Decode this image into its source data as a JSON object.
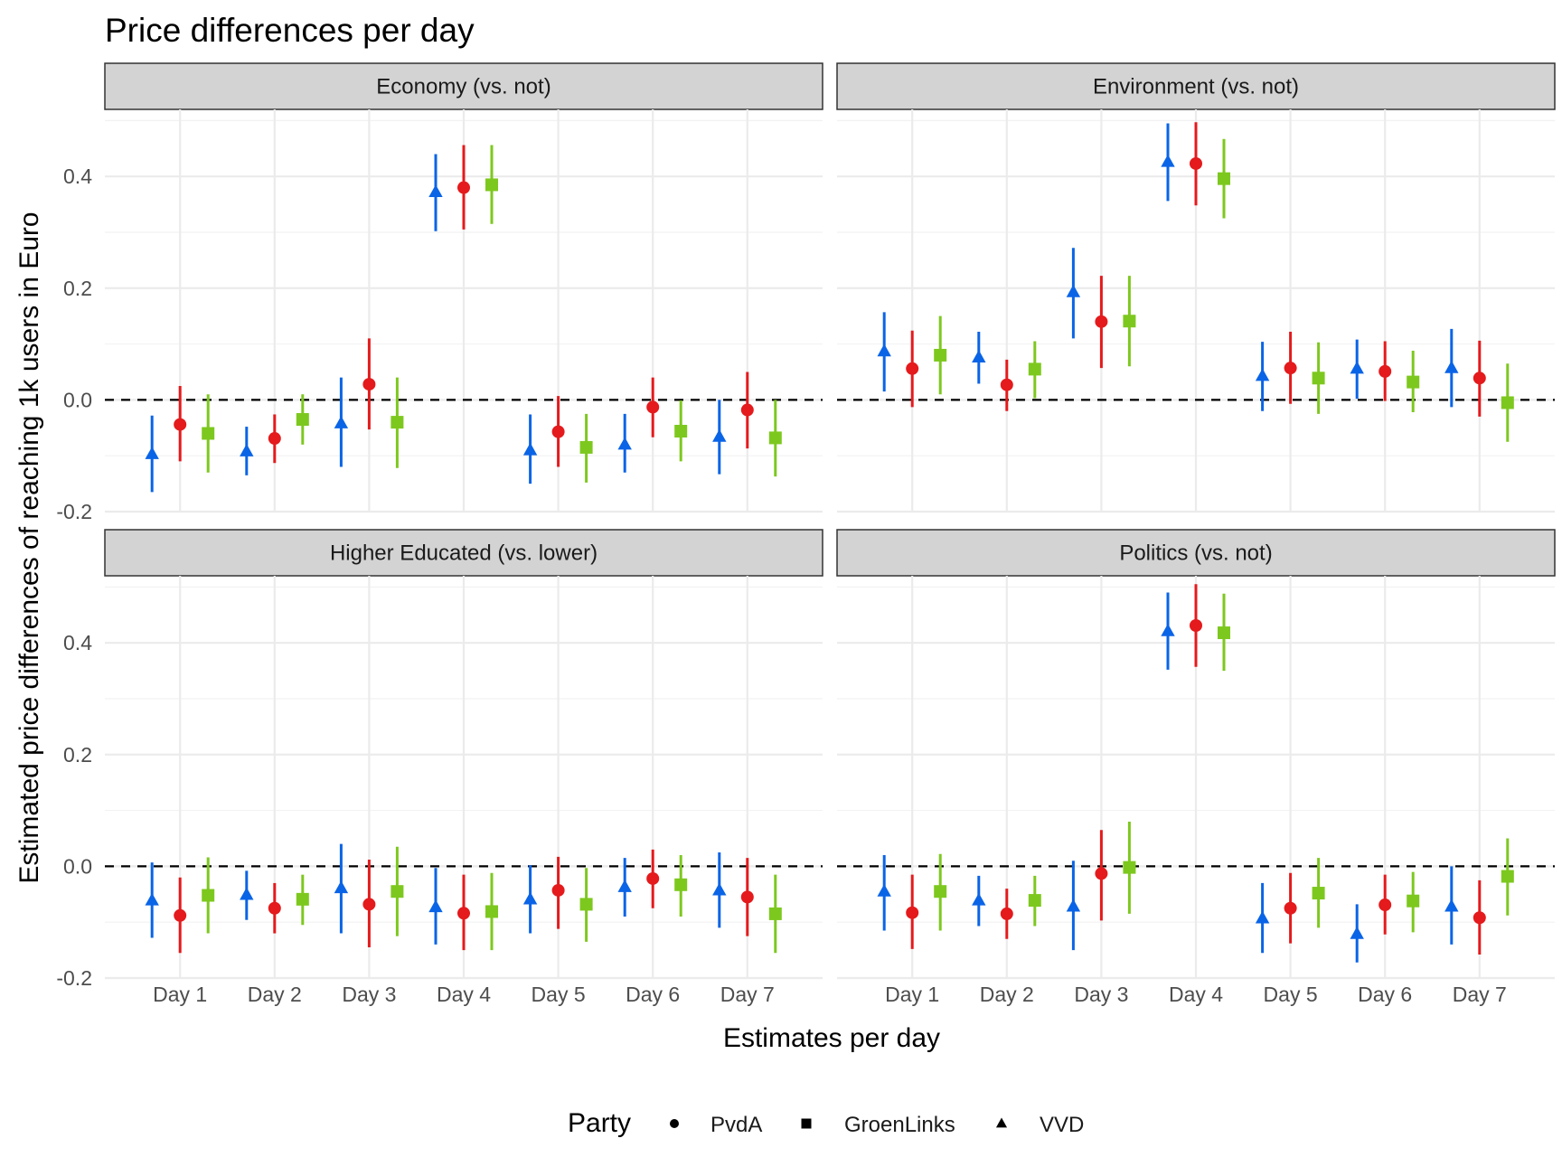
{
  "chart_data": {
    "type": "pointrange",
    "title": "Price differences per day",
    "xlabel": "Estimates per day",
    "ylabel": "Estimated price differences of reaching 1k users in Euro",
    "categories": [
      "Day 1",
      "Day 2",
      "Day 3",
      "Day 4",
      "Day 5",
      "Day 6",
      "Day 7"
    ],
    "ylim": [
      -0.2,
      0.52
    ],
    "yticks": [
      -0.2,
      0.0,
      0.2,
      0.4
    ],
    "ytick_labels": [
      "-0.2",
      "0.0",
      "0.2",
      "0.4"
    ],
    "reference_line": 0,
    "grid": true,
    "legend": {
      "title": "Party",
      "position": "bottom",
      "entries": [
        {
          "name": "PvdA",
          "shape": "circle",
          "color": "#E41A1C"
        },
        {
          "name": "GroenLinks",
          "shape": "square",
          "color": "#7DC81E"
        },
        {
          "name": "VVD",
          "shape": "triangle",
          "color": "#0A64E6"
        }
      ]
    },
    "series_order": [
      "VVD",
      "PvdA",
      "GroenLinks"
    ],
    "series_colors": {
      "VVD": "#0A64E6",
      "PvdA": "#E41A1C",
      "GroenLinks": "#7DC81E"
    },
    "series_shapes": {
      "VVD": "triangle",
      "PvdA": "circle",
      "GroenLinks": "square"
    },
    "panels": [
      {
        "title": "Economy (vs. not)",
        "series": [
          {
            "name": "VVD",
            "estimate": [
              -0.097,
              -0.092,
              -0.042,
              0.372,
              -0.09,
              -0.08,
              -0.066
            ],
            "lower": [
              -0.165,
              -0.135,
              -0.12,
              0.302,
              -0.15,
              -0.13,
              -0.133
            ],
            "upper": [
              -0.028,
              -0.048,
              0.04,
              0.44,
              -0.026,
              -0.025,
              0.0
            ]
          },
          {
            "name": "PvdA",
            "estimate": [
              -0.044,
              -0.069,
              0.028,
              0.38,
              -0.057,
              -0.013,
              -0.018
            ],
            "lower": [
              -0.11,
              -0.113,
              -0.053,
              0.305,
              -0.12,
              -0.067,
              -0.087
            ],
            "upper": [
              0.025,
              -0.026,
              0.11,
              0.456,
              0.007,
              0.04,
              0.05
            ]
          },
          {
            "name": "GroenLinks",
            "estimate": [
              -0.06,
              -0.035,
              -0.04,
              0.385,
              -0.085,
              -0.056,
              -0.068
            ],
            "lower": [
              -0.13,
              -0.08,
              -0.122,
              0.315,
              -0.148,
              -0.11,
              -0.137
            ],
            "upper": [
              0.01,
              0.01,
              0.04,
              0.456,
              -0.025,
              -0.001,
              0.0
            ]
          }
        ]
      },
      {
        "title": "Environment (vs. not)",
        "series": [
          {
            "name": "VVD",
            "estimate": [
              0.087,
              0.076,
              0.193,
              0.426,
              0.043,
              0.056,
              0.057
            ],
            "lower": [
              0.015,
              0.029,
              0.11,
              0.356,
              -0.02,
              0.002,
              -0.013
            ],
            "upper": [
              0.157,
              0.122,
              0.272,
              0.495,
              0.104,
              0.108,
              0.127
            ]
          },
          {
            "name": "PvdA",
            "estimate": [
              0.056,
              0.027,
              0.14,
              0.423,
              0.057,
              0.051,
              0.039
            ],
            "lower": [
              -0.013,
              -0.02,
              0.057,
              0.348,
              -0.007,
              -0.002,
              -0.03
            ],
            "upper": [
              0.124,
              0.072,
              0.222,
              0.497,
              0.122,
              0.105,
              0.106
            ]
          },
          {
            "name": "GroenLinks",
            "estimate": [
              0.08,
              0.055,
              0.141,
              0.396,
              0.039,
              0.032,
              -0.005
            ],
            "lower": [
              0.01,
              0.003,
              0.06,
              0.325,
              -0.025,
              -0.022,
              -0.075
            ],
            "upper": [
              0.15,
              0.105,
              0.222,
              0.467,
              0.103,
              0.088,
              0.065
            ]
          }
        ]
      },
      {
        "title": "Higher Educated (vs. lower)",
        "series": [
          {
            "name": "VVD",
            "estimate": [
              -0.061,
              -0.051,
              -0.039,
              -0.073,
              -0.059,
              -0.037,
              -0.043
            ],
            "lower": [
              -0.128,
              -0.096,
              -0.12,
              -0.14,
              -0.12,
              -0.09,
              -0.11
            ],
            "upper": [
              0.007,
              -0.008,
              0.04,
              -0.003,
              0.002,
              0.015,
              0.025
            ]
          },
          {
            "name": "PvdA",
            "estimate": [
              -0.088,
              -0.075,
              -0.068,
              -0.084,
              -0.043,
              -0.022,
              -0.055
            ],
            "lower": [
              -0.155,
              -0.12,
              -0.145,
              -0.15,
              -0.112,
              -0.075,
              -0.125
            ],
            "upper": [
              -0.02,
              -0.03,
              0.012,
              -0.015,
              0.017,
              0.03,
              0.015
            ]
          },
          {
            "name": "GroenLinks",
            "estimate": [
              -0.052,
              -0.059,
              -0.045,
              -0.081,
              -0.068,
              -0.033,
              -0.085
            ],
            "lower": [
              -0.12,
              -0.105,
              -0.125,
              -0.15,
              -0.135,
              -0.09,
              -0.155
            ],
            "upper": [
              0.016,
              -0.015,
              0.035,
              -0.012,
              -0.003,
              0.02,
              -0.015
            ]
          }
        ]
      },
      {
        "title": "Politics (vs. not)",
        "series": [
          {
            "name": "VVD",
            "estimate": [
              -0.045,
              -0.061,
              -0.072,
              0.421,
              -0.093,
              -0.121,
              -0.072
            ],
            "lower": [
              -0.115,
              -0.107,
              -0.15,
              0.352,
              -0.155,
              -0.172,
              -0.14
            ],
            "upper": [
              0.02,
              -0.017,
              0.01,
              0.49,
              -0.03,
              -0.068,
              0.0
            ]
          },
          {
            "name": "PvdA",
            "estimate": [
              -0.083,
              -0.085,
              -0.013,
              0.431,
              -0.075,
              -0.069,
              -0.092
            ],
            "lower": [
              -0.148,
              -0.13,
              -0.097,
              0.357,
              -0.138,
              -0.122,
              -0.158
            ],
            "upper": [
              -0.015,
              -0.04,
              0.065,
              0.505,
              -0.012,
              -0.015,
              -0.025
            ]
          },
          {
            "name": "GroenLinks",
            "estimate": [
              -0.045,
              -0.061,
              -0.002,
              0.418,
              -0.048,
              -0.062,
              -0.018
            ],
            "lower": [
              -0.115,
              -0.107,
              -0.085,
              0.35,
              -0.11,
              -0.118,
              -0.088
            ],
            "upper": [
              0.022,
              -0.017,
              0.08,
              0.488,
              0.015,
              -0.01,
              0.05
            ]
          }
        ]
      }
    ]
  }
}
